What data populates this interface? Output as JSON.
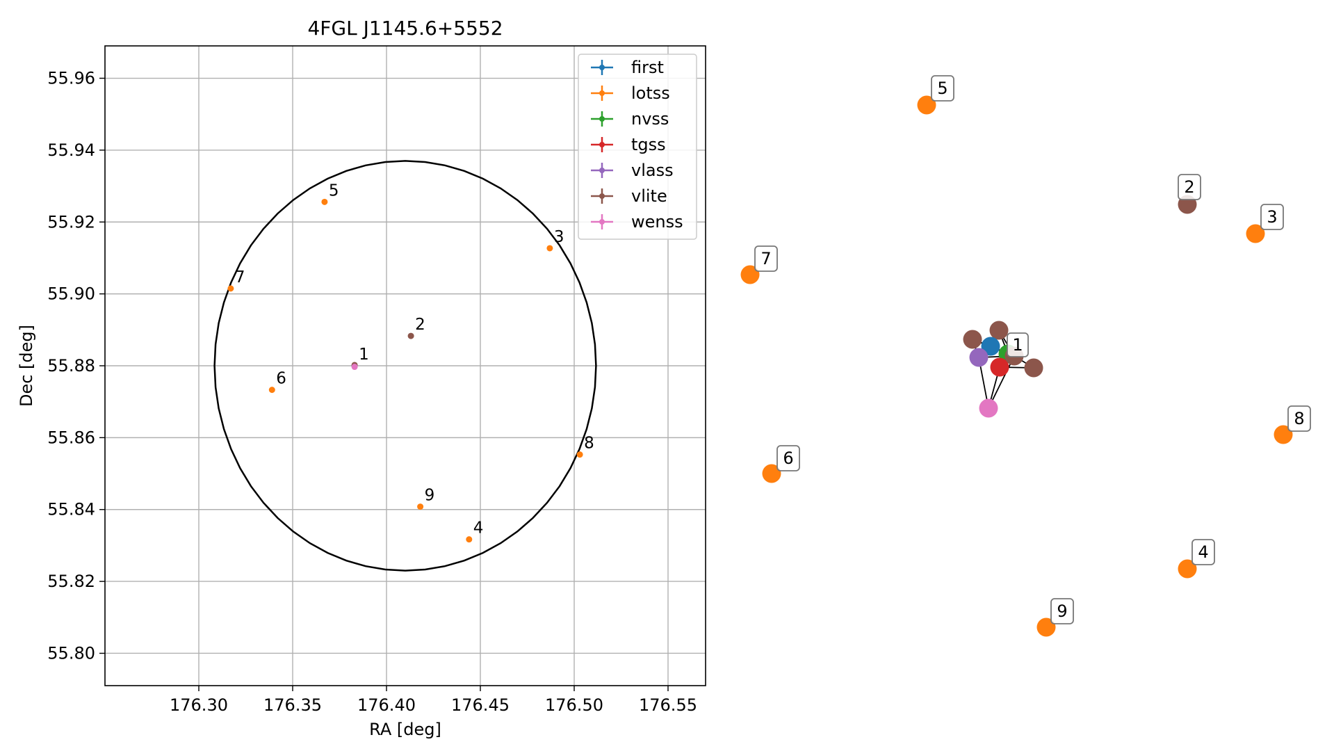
{
  "colors": {
    "first": "#1f77b4",
    "lotss": "#ff7f0e",
    "nvss": "#2ca02c",
    "tgss": "#d62728",
    "vlass": "#9467bd",
    "vlite": "#8c564b",
    "wenss": "#e377c2"
  },
  "chart_data": [
    {
      "type": "scatter",
      "title": "4FGL J1145.6+5552",
      "xlabel": "RA [deg]",
      "ylabel": "Dec [deg]",
      "xlim": [
        176.25,
        176.57
      ],
      "ylim": [
        55.791,
        55.969
      ],
      "grid": true,
      "legend_position": "top-right",
      "x_ticks": [
        176.3,
        176.35,
        176.4,
        176.45,
        176.5,
        176.55
      ],
      "x_tick_labels": [
        "176.30",
        "176.35",
        "176.40",
        "176.45",
        "176.50",
        "176.55"
      ],
      "y_ticks": [
        55.8,
        55.82,
        55.84,
        55.86,
        55.88,
        55.9,
        55.92,
        55.94,
        55.96
      ],
      "y_tick_labels": [
        "55.80",
        "55.82",
        "55.84",
        "55.86",
        "55.88",
        "55.90",
        "55.92",
        "55.94",
        "55.96"
      ],
      "legend": [
        "first",
        "lotss",
        "nvss",
        "tgss",
        "vlass",
        "vlite",
        "wenss"
      ],
      "error_circle": {
        "center": [
          176.41,
          55.88
        ],
        "radius_deg": 0.057
      },
      "points": [
        {
          "label": "1",
          "survey": "first",
          "ra": 176.383,
          "dec": 55.88
        },
        {
          "label": "1",
          "survey": "vlite",
          "ra": 176.383,
          "dec": 55.8802
        },
        {
          "label": "1",
          "survey": "wenss",
          "ra": 176.383,
          "dec": 55.8797
        },
        {
          "label": "2",
          "survey": "vlite",
          "ra": 176.413,
          "dec": 55.8883
        },
        {
          "label": "3",
          "survey": "lotss",
          "ra": 176.487,
          "dec": 55.9127
        },
        {
          "label": "4",
          "survey": "lotss",
          "ra": 176.444,
          "dec": 55.8317
        },
        {
          "label": "5",
          "survey": "lotss",
          "ra": 176.367,
          "dec": 55.9256
        },
        {
          "label": "6",
          "survey": "lotss",
          "ra": 176.339,
          "dec": 55.8733
        },
        {
          "label": "7",
          "survey": "lotss",
          "ra": 176.317,
          "dec": 55.9015
        },
        {
          "label": "8",
          "survey": "lotss",
          "ra": 176.503,
          "dec": 55.8553
        },
        {
          "label": "9",
          "survey": "lotss",
          "ra": 176.418,
          "dec": 55.8408
        }
      ]
    },
    {
      "type": "network",
      "nodes": [
        {
          "label": "1",
          "survey": "vlite"
        },
        {
          "label": "",
          "survey": "vlite"
        },
        {
          "label": "",
          "survey": "vlite"
        },
        {
          "label": "",
          "survey": "vlite"
        },
        {
          "label": "",
          "survey": "first"
        },
        {
          "label": "",
          "survey": "nvss"
        },
        {
          "label": "",
          "survey": "vlass"
        },
        {
          "label": "",
          "survey": "tgss"
        },
        {
          "label": "",
          "survey": "wenss"
        },
        {
          "label": "2",
          "survey": "vlite"
        },
        {
          "label": "3",
          "survey": "lotss"
        },
        {
          "label": "4",
          "survey": "lotss"
        },
        {
          "label": "5",
          "survey": "lotss"
        },
        {
          "label": "6",
          "survey": "lotss"
        },
        {
          "label": "7",
          "survey": "lotss"
        },
        {
          "label": "8",
          "survey": "lotss"
        },
        {
          "label": "9",
          "survey": "lotss"
        }
      ]
    }
  ]
}
